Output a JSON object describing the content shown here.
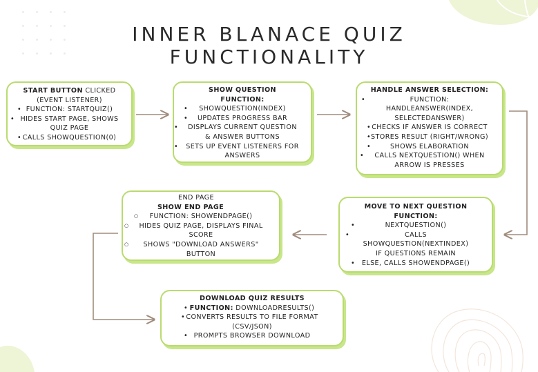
{
  "title": {
    "line1": "INNER BLANACE QUIZ",
    "line2": "FUNCTIONALITY"
  },
  "boxes": {
    "start": {
      "heading_bold": "START BUTTON",
      "heading_rest": " CLICKED",
      "subheading": "(EVENT LISTENER)",
      "items": [
        "FUNCTION: STARTQUIZ()",
        "HIDES START PAGE, SHOWS QUIZ PAGE",
        "CALLS SHOWQUESTION(0)"
      ]
    },
    "show_question": {
      "heading": "SHOW QUESTION",
      "function_label": "FUNCTION:",
      "items": [
        "SHOWQUESTION(INDEX)",
        "UPDATES PROGRESS BAR",
        "DISPLAYS CURRENT QUESTION & ANSWER BUTTONS",
        "SETS UP EVENT LISTENERS FOR ANSWERS"
      ]
    },
    "handle_answer": {
      "heading": "HANDLE ANSWER SELECTION:",
      "items": [
        "FUNCTION: HANDLEANSWER(INDEX, SELECTEDANSWER)",
        "CHECKS IF ANSWER IS CORRECT",
        "STORES RESULT (RIGHT/WRONG)",
        "SHOWS ELABORATION",
        "CALLS NEXTQUESTION() WHEN ARROW IS PRESSES"
      ]
    },
    "next_question": {
      "heading": "MOVE TO NEXT QUESTION FUNCTION:",
      "items": [
        "NEXTQUESTION()",
        "CALLS SHOWQUESTION(NEXTINDEX) IF QUESTIONS REMAIN",
        "ELSE, CALLS SHOWENDPAGE()"
      ]
    },
    "end_page": {
      "top_label": "END PAGE",
      "heading": "SHOW END PAGE",
      "items": [
        "FUNCTION: SHOWENDPAGE()",
        "HIDES QUIZ PAGE, DISPLAYS FINAL SCORE",
        "SHOWS \"DOWNLOAD ANSWERS\" BUTTON"
      ]
    },
    "download": {
      "heading": "DOWNLOAD QUIZ RESULTS",
      "function_label": "FUNCTION:",
      "function_value": " DOWNLOADRESULTS()",
      "items": [
        "CONVERTS RESULTS TO FILE FORMAT (CSV/JSON)",
        "PROMPTS BROWSER DOWNLOAD"
      ]
    }
  },
  "colors": {
    "box_border": "#b9db6f",
    "box_shadow": "#c8e68a",
    "arrow": "#a08c7d",
    "blob": "#eef4d6"
  }
}
